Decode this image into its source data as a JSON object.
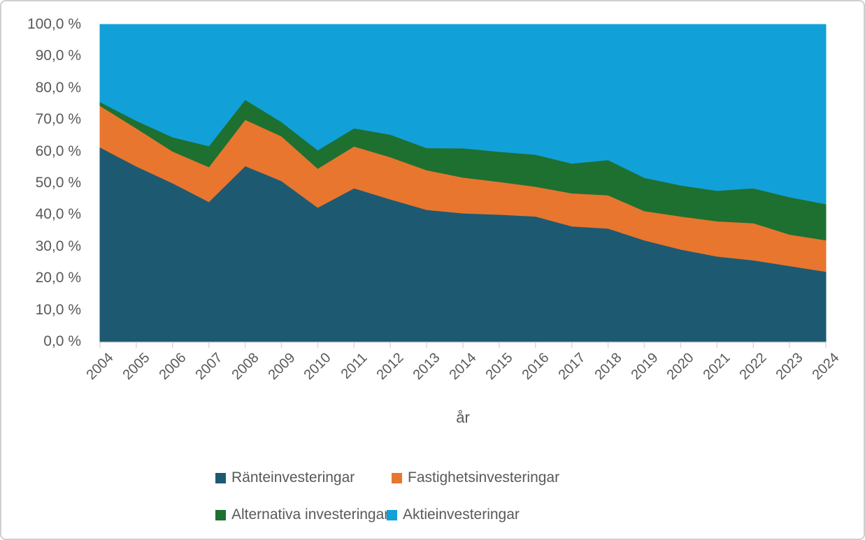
{
  "chart_data": {
    "type": "area",
    "stacking": "percent",
    "title": "",
    "xlabel": "år",
    "ylabel": "",
    "grid": false,
    "legend_position": "bottom",
    "ylim": [
      0,
      100
    ],
    "x": [
      "2004",
      "2005",
      "2006",
      "2007",
      "2008",
      "2009",
      "2010",
      "2011",
      "2012",
      "2013",
      "2014",
      "2015",
      "2016",
      "2017",
      "2018",
      "2019",
      "2020",
      "2021",
      "2022",
      "2023",
      "2024"
    ],
    "series": [
      {
        "id": "ranteinvesteringar",
        "name": "Ränteinvesteringar",
        "color": "#1D5A72",
        "values": [
          61.3,
          55.3,
          50.0,
          44.1,
          55.4,
          50.7,
          42.3,
          48.4,
          44.9,
          41.6,
          40.5,
          40.1,
          39.5,
          36.4,
          35.7,
          32.0,
          29.1,
          26.9,
          25.7,
          23.9,
          22.1
        ]
      },
      {
        "id": "fastighetsinvesteringar",
        "name": "Fastighetsinvesteringar",
        "color": "#E8762F",
        "values": [
          13.1,
          12.0,
          10.0,
          11.0,
          14.6,
          14.1,
          12.3,
          13.2,
          13.3,
          12.5,
          11.3,
          10.3,
          9.4,
          10.4,
          10.5,
          9.2,
          10.4,
          11.1,
          11.7,
          9.9,
          9.9
        ]
      },
      {
        "id": "alternativa-investeringar",
        "name": "Alternativa investeringar",
        "color": "#1E7030",
        "values": [
          1.2,
          2.4,
          4.5,
          6.6,
          6.3,
          4.5,
          5.8,
          5.7,
          7.1,
          7.0,
          9.2,
          9.5,
          10.1,
          9.4,
          11.1,
          10.5,
          9.8,
          9.6,
          11.0,
          11.8,
          11.4
        ]
      },
      {
        "id": "aktieinvesteringar",
        "name": "Aktieinvesteringar",
        "color": "#12A0D8",
        "values": [
          24.4,
          30.3,
          35.5,
          38.3,
          23.7,
          30.7,
          39.6,
          32.7,
          34.7,
          38.9,
          39.0,
          40.1,
          41.0,
          43.8,
          42.7,
          48.3,
          50.7,
          52.4,
          51.6,
          54.4,
          56.6
        ]
      }
    ],
    "y_tick_values": [
      0,
      10,
      20,
      30,
      40,
      50,
      60,
      70,
      80,
      90,
      100
    ],
    "y_tick_labels": [
      "0,0 %",
      "10,0 %",
      "20,0 %",
      "30,0 %",
      "40,0 %",
      "50,0 %",
      "60,0 %",
      "70,0 %",
      "80,0 %",
      "90,0 %",
      "100,0 %"
    ],
    "style": {
      "axis_line_color": "#D9D9D9",
      "text_color": "#595959"
    }
  }
}
